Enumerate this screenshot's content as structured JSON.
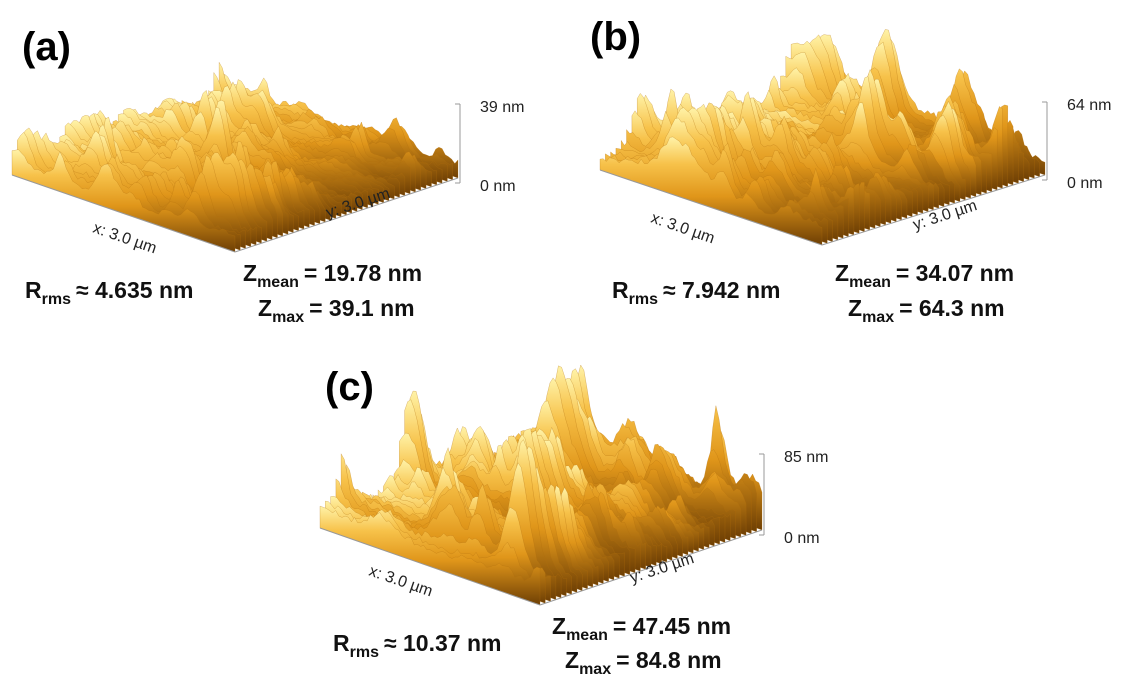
{
  "panels": [
    {
      "label": "(a)",
      "z_top": "39 nm",
      "z_bottom": "0 nm",
      "x_axis": "x: 3.0 µm",
      "y_axis": "y: 3.0 µm",
      "rms": {
        "symbol": "R",
        "subscript": "rms",
        "value": "≈ 4.635 nm"
      },
      "z_mean": {
        "symbol": "Z",
        "subscript": "mean",
        "value": "= 19.78 nm"
      },
      "z_max": {
        "symbol": "Z",
        "subscript": "max",
        "value": "= 39.1 nm"
      }
    },
    {
      "label": "(b)",
      "z_top": "64 nm",
      "z_bottom": "0 nm",
      "x_axis": "x: 3.0 µm",
      "y_axis": "y: 3.0 µm",
      "rms": {
        "symbol": "R",
        "subscript": "rms",
        "value": "≈ 7.942 nm"
      },
      "z_mean": {
        "symbol": "Z",
        "subscript": "mean",
        "value": "= 34.07 nm"
      },
      "z_max": {
        "symbol": "Z",
        "subscript": "max",
        "value": "= 64.3 nm"
      }
    },
    {
      "label": "(c)",
      "z_top": "85 nm",
      "z_bottom": "0 nm",
      "x_axis": "x: 3.0 µm",
      "y_axis": "y: 3.0 µm",
      "rms": {
        "symbol": "R",
        "subscript": "rms",
        "value": "≈ 10.37 nm"
      },
      "z_mean": {
        "symbol": "Z",
        "subscript": "mean",
        "value": "= 47.45 nm"
      },
      "z_max": {
        "symbol": "Z",
        "subscript": "max",
        "value": "= 84.8 nm"
      }
    }
  ]
}
